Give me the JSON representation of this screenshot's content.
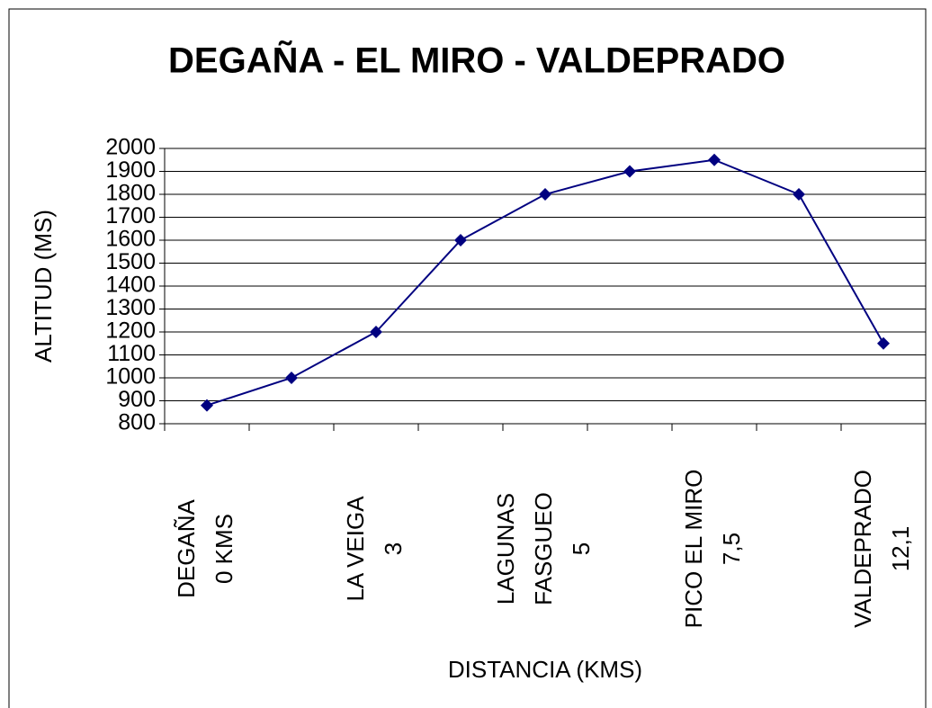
{
  "chart_data": {
    "type": "line",
    "title": "DEGAÑA - EL MIRO - VALDEPRADO",
    "x_label": "DISTANCIA (KMS)",
    "y_label": "ALTITUD (MS)",
    "categories": [
      [
        "DEGAÑA",
        "0 KMS"
      ],
      null,
      [
        "LA VEIGA",
        "3"
      ],
      null,
      [
        "LAGUNAS",
        "FASGUEO",
        "5"
      ],
      null,
      [
        "PICO EL MIRO",
        "7,5"
      ],
      null,
      [
        "VALDEPRADO",
        "12,1"
      ]
    ],
    "series": [
      {
        "color": "#000080",
        "values": [
          880,
          1000,
          1200,
          1600,
          1800,
          1900,
          1950,
          1800,
          1150
        ]
      }
    ],
    "ylim": [
      800,
      2000
    ],
    "yticks": [
      800,
      900,
      1000,
      1100,
      1200,
      1300,
      1400,
      1500,
      1600,
      1700,
      1800,
      1900,
      2000
    ],
    "grid": true
  }
}
